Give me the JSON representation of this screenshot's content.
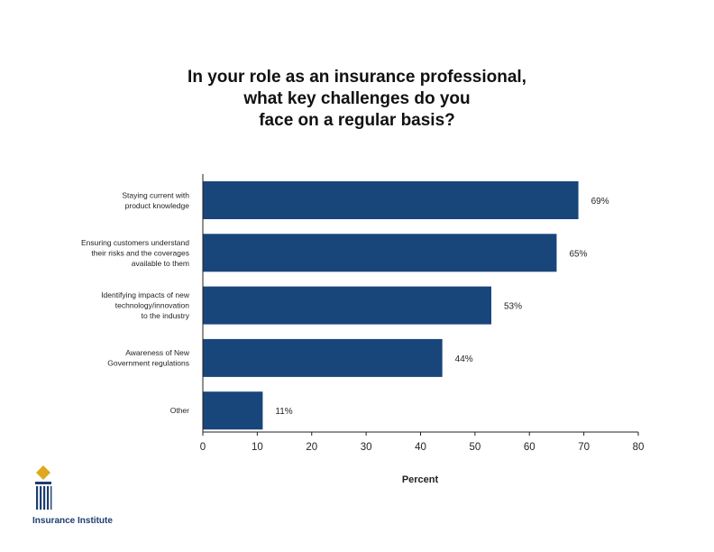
{
  "chart_data": {
    "type": "bar",
    "orientation": "horizontal",
    "title": [
      "In your role as an insurance professional,",
      "what key challenges do you",
      "face on a regular basis?"
    ],
    "categories": [
      [
        "Staying current with",
        "product knowledge"
      ],
      [
        "Ensuring customers understand",
        "their risks and the coverages",
        "available to them"
      ],
      [
        "Identifying impacts of new",
        "technology/innovation",
        "to the industry"
      ],
      [
        "Awareness of New",
        "Government regulations"
      ],
      [
        "Other"
      ]
    ],
    "values": [
      69,
      65,
      53,
      44,
      11
    ],
    "data_labels": [
      "69%",
      "65%",
      "53%",
      "44%",
      "11%"
    ],
    "xlabel": "Percent",
    "ylabel": "",
    "xlim": [
      0,
      80
    ],
    "xticks": [
      0,
      10,
      20,
      30,
      40,
      50,
      60,
      70,
      80
    ],
    "grid": false,
    "bar_color": "#18457a"
  },
  "logo": {
    "text": "Insurance Institute",
    "accent_color": "#e0a81e",
    "brand_color": "#1d3d6f",
    "icon": "insurance-institute-logo-icon"
  }
}
